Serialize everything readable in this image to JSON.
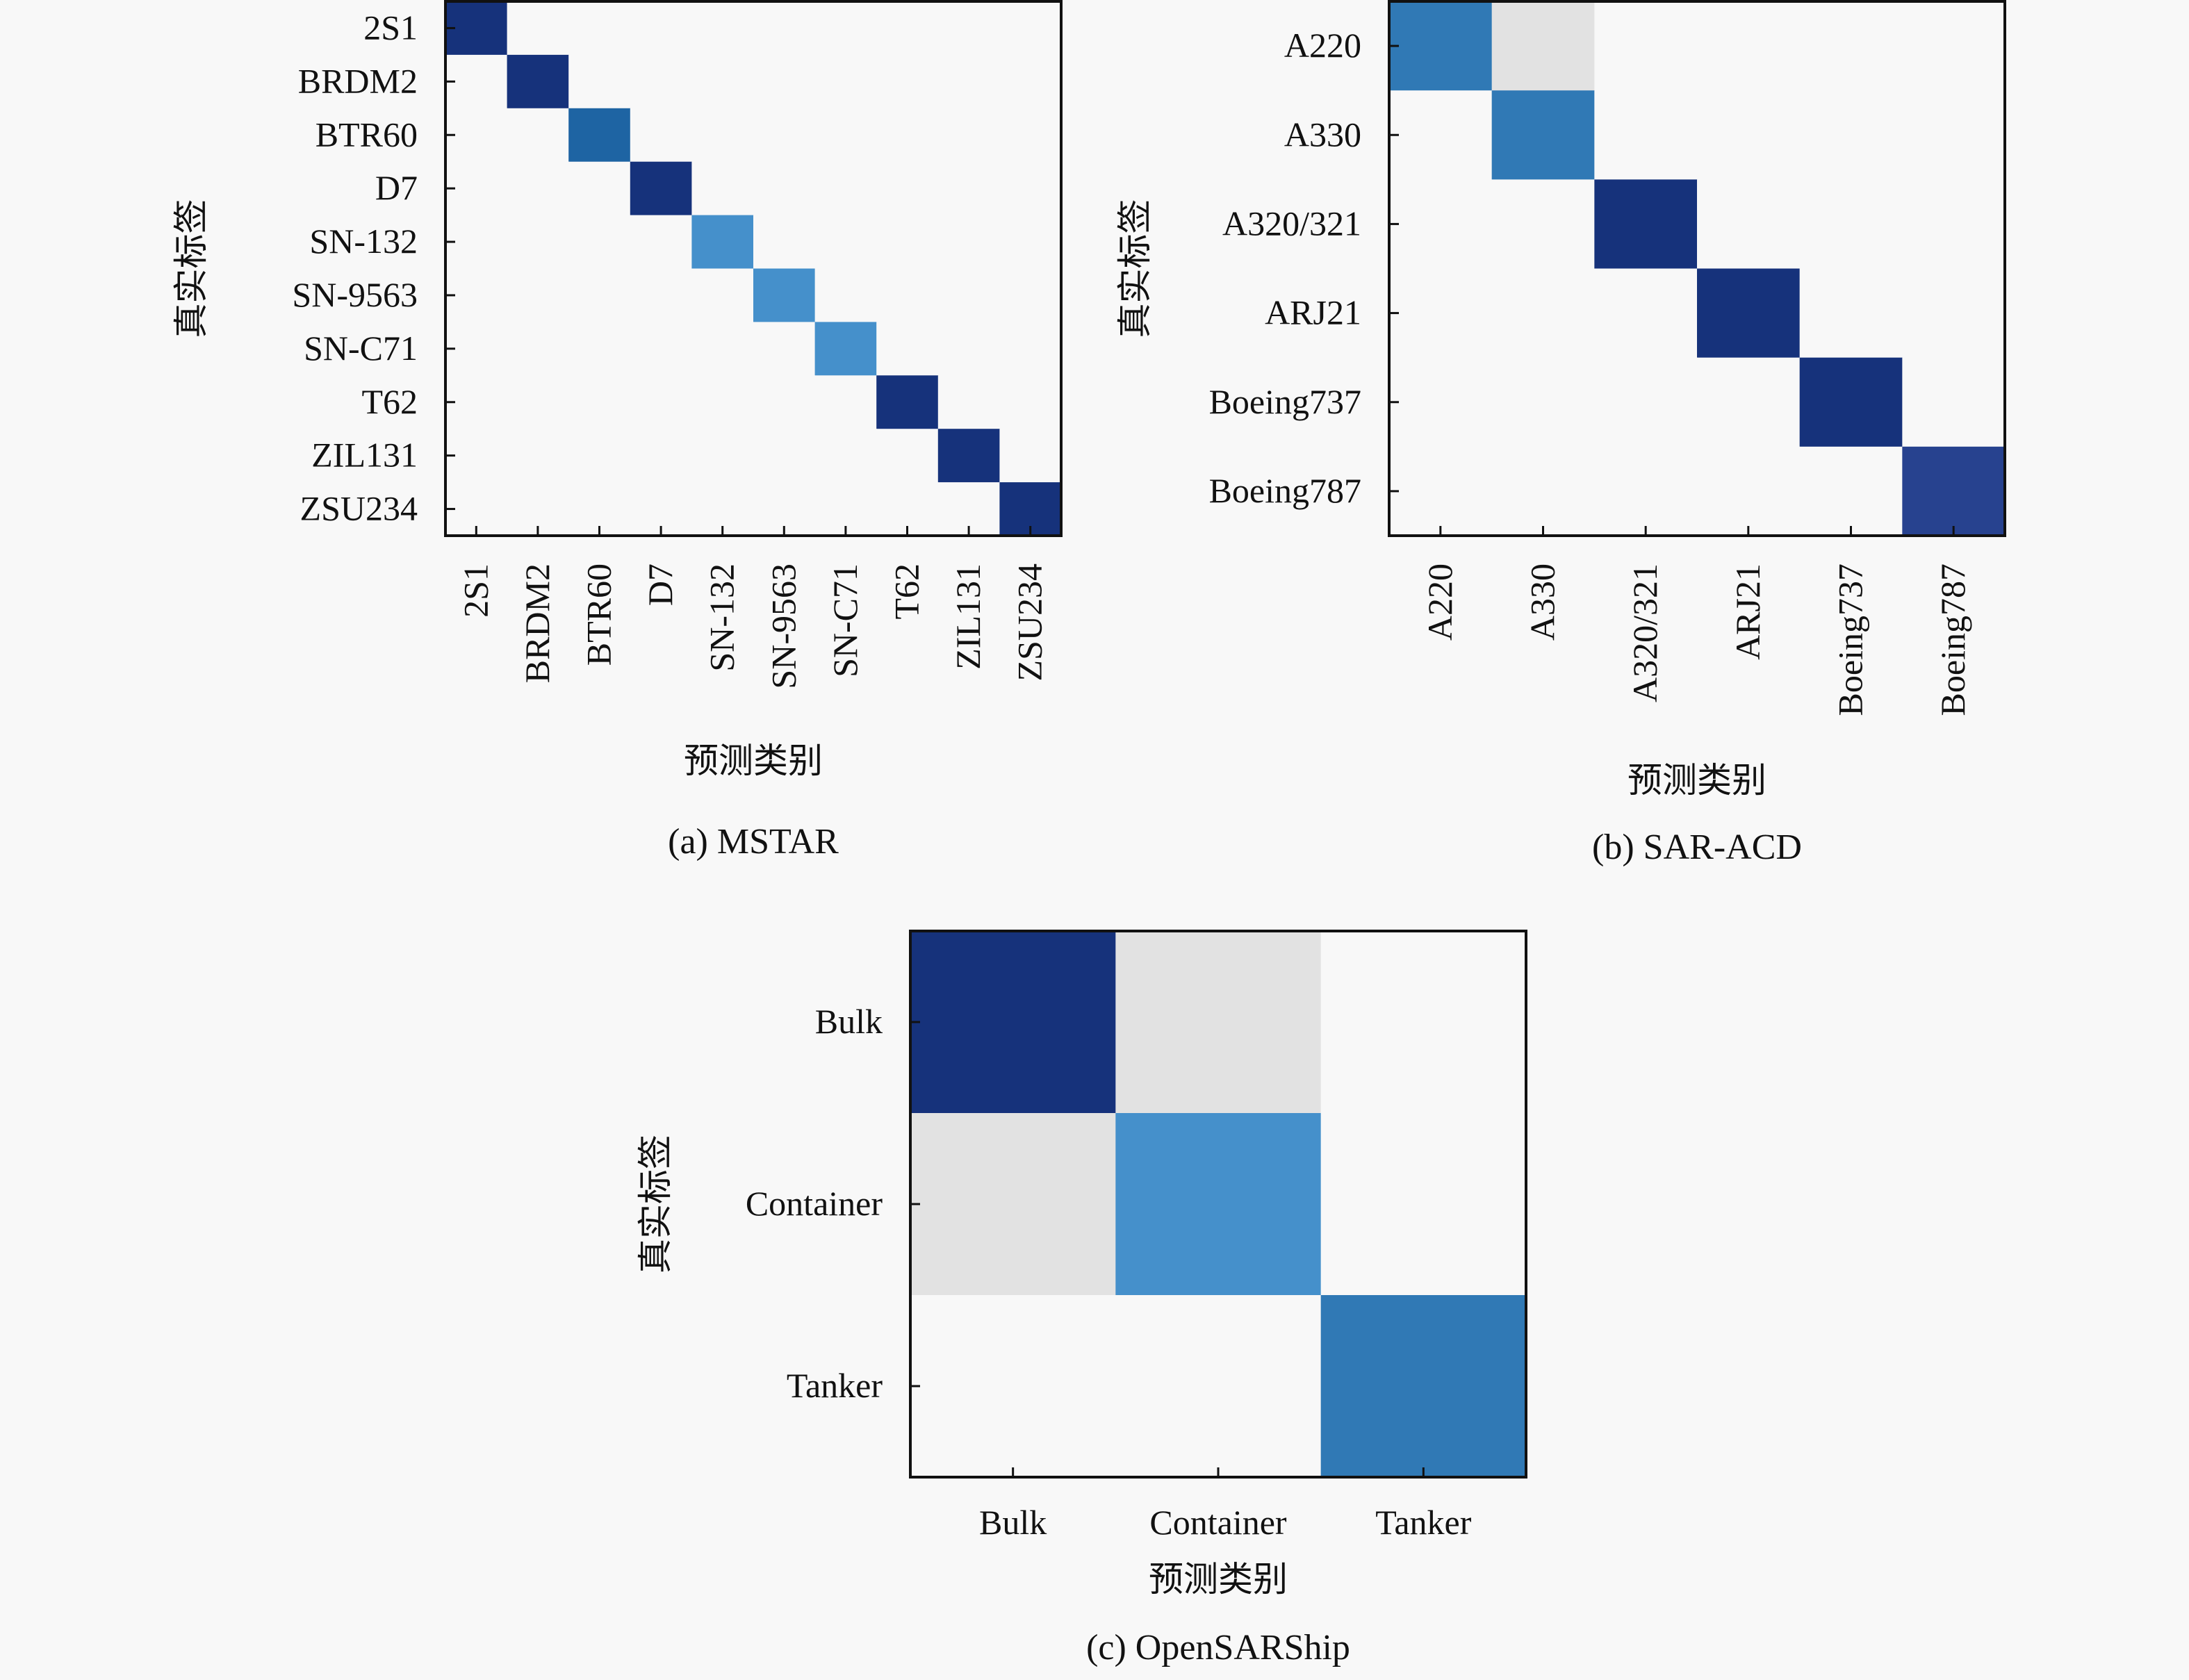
{
  "chart_data": [
    {
      "type": "heatmap",
      "id": "mstar",
      "caption": "(a) MSTAR",
      "xlabel": "预测类别",
      "ylabel": "真实标签",
      "x_categories": [
        "2S1",
        "BRDM2",
        "BTR60",
        "D7",
        "SN-132",
        "SN-9563",
        "SN-C71",
        "T62",
        "ZIL131",
        "ZSU234"
      ],
      "y_categories": [
        "2S1",
        "BRDM2",
        "BTR60",
        "D7",
        "SN-132",
        "SN-9563",
        "SN-C71",
        "T62",
        "ZIL131",
        "ZSU234"
      ],
      "colormap": "Blues",
      "vmin": 0,
      "vmax": 1,
      "values": [
        [
          0.99,
          0,
          0,
          0,
          0,
          0,
          0,
          0,
          0,
          0
        ],
        [
          0,
          0.99,
          0,
          0,
          0,
          0,
          0,
          0,
          0,
          0
        ],
        [
          0,
          0,
          0.86,
          0,
          0,
          0,
          0,
          0,
          0,
          0
        ],
        [
          0,
          0,
          0,
          0.99,
          0,
          0,
          0,
          0,
          0,
          0
        ],
        [
          0,
          0,
          0,
          0,
          0.7,
          0,
          0,
          0,
          0,
          0
        ],
        [
          0,
          0,
          0,
          0,
          0,
          0.7,
          0,
          0,
          0,
          0
        ],
        [
          0,
          0,
          0,
          0,
          0,
          0,
          0.7,
          0,
          0,
          0
        ],
        [
          0,
          0,
          0,
          0,
          0,
          0,
          0,
          0.99,
          0,
          0
        ],
        [
          0,
          0,
          0,
          0,
          0,
          0,
          0,
          0,
          0.99,
          0
        ],
        [
          0,
          0,
          0,
          0,
          0,
          0,
          0,
          0,
          0,
          0.99
        ]
      ]
    },
    {
      "type": "heatmap",
      "id": "sar-acd",
      "caption": "(b) SAR-ACD",
      "xlabel": "预测类别",
      "ylabel": "真实标签",
      "x_categories": [
        "A220",
        "A330",
        "A320/321",
        "ARJ21",
        "Boeing737",
        "Boeing787"
      ],
      "y_categories": [
        "A220",
        "A330",
        "A320/321",
        "ARJ21",
        "Boeing737",
        "Boeing787"
      ],
      "colormap": "Blues",
      "vmin": 0,
      "vmax": 1,
      "values": [
        [
          0.78,
          0.08,
          0,
          0,
          0,
          0
        ],
        [
          0,
          0.78,
          0,
          0,
          0,
          0
        ],
        [
          0,
          0,
          0.99,
          0,
          0,
          0
        ],
        [
          0,
          0,
          0,
          0.99,
          0,
          0
        ],
        [
          0,
          0,
          0,
          0,
          0.99,
          0
        ],
        [
          0,
          0,
          0,
          0,
          0,
          0.93
        ]
      ]
    },
    {
      "type": "heatmap",
      "id": "opensarship",
      "caption": "(c) OpenSARShip",
      "xlabel": "预测类别",
      "ylabel": "真实标签",
      "x_categories": [
        "Bulk",
        "Container",
        "Tanker"
      ],
      "y_categories": [
        "Bulk",
        "Container",
        "Tanker"
      ],
      "colormap": "Blues",
      "vmin": 0,
      "vmax": 1,
      "values": [
        [
          0.99,
          0.08,
          0
        ],
        [
          0.08,
          0.7,
          0
        ],
        [
          0,
          0,
          0.78
        ]
      ]
    }
  ],
  "colors": {
    "background": "#f8f8f8",
    "axis": "#111111"
  }
}
